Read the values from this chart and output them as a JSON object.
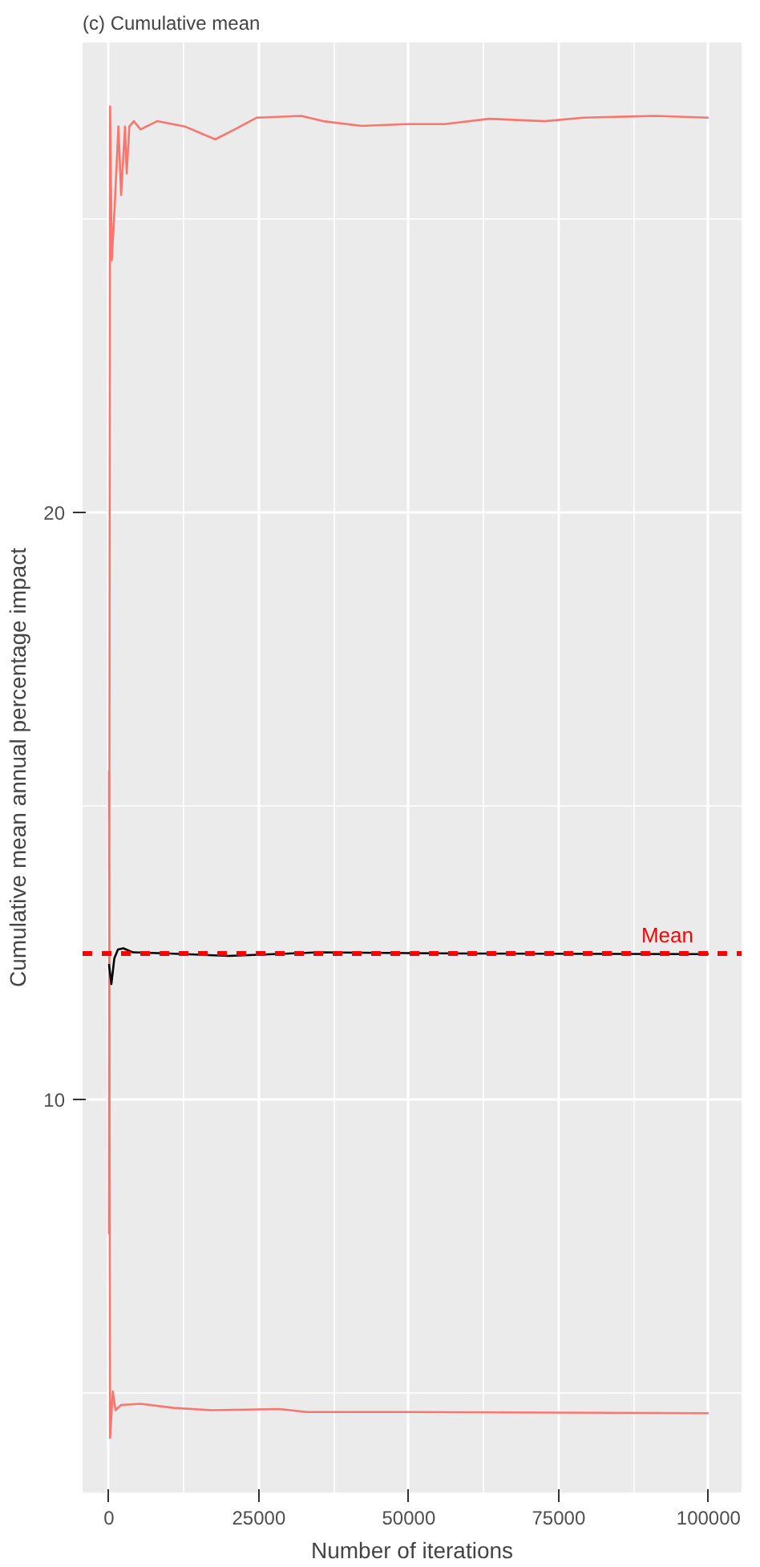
{
  "chart_data": {
    "type": "line",
    "title": "(c) Cumulative mean",
    "xlabel": "Number of iterations",
    "ylabel": "Cumulative mean annual percentage impact",
    "xlim": [
      -4400,
      105500
    ],
    "ylim": [
      3.3,
      28.0
    ],
    "xticks": [
      0,
      25000,
      50000,
      75000,
      100000
    ],
    "yticks": [
      10,
      20
    ],
    "grid": true,
    "series": [
      {
        "color": "#f8766d",
        "x": [
          0,
          190,
          470,
          920,
          1580,
          2030,
          2680,
          2960,
          3400,
          4150,
          5270,
          8030,
          12650,
          17730,
          20970,
          24650,
          32050,
          35700,
          42150,
          49600,
          56000,
          63400,
          72700,
          79100,
          91100,
          100000
        ],
        "values": [
          7.7,
          26.91,
          24.29,
          25.13,
          26.57,
          25.4,
          26.57,
          25.77,
          26.57,
          26.66,
          26.52,
          26.66,
          26.57,
          26.35,
          26.52,
          26.72,
          26.75,
          26.66,
          26.58,
          26.61,
          26.61,
          26.7,
          26.66,
          26.72,
          26.75,
          26.72
        ]
      },
      {
        "color": "#f8766d",
        "x": [
          0,
          190,
          640,
          1100,
          2030,
          5270,
          10800,
          17260,
          28350,
          33000,
          49600,
          100000
        ],
        "values": [
          15.6,
          4.23,
          5.02,
          4.7,
          4.79,
          4.81,
          4.74,
          4.7,
          4.72,
          4.67,
          4.67,
          4.65
        ]
      },
      {
        "color": "#000000",
        "x": [
          0,
          400,
          900,
          1500,
          2400,
          4000,
          10000,
          20000,
          35000,
          60000,
          100000
        ],
        "values": [
          12.3,
          11.96,
          12.4,
          12.55,
          12.57,
          12.5,
          12.48,
          12.44,
          12.5,
          12.48,
          12.47
        ]
      }
    ],
    "ref_lines": [
      {
        "axis": "y",
        "value": 12.48,
        "label": "Mean",
        "color": "#ff0000",
        "line_style": "dashed"
      }
    ]
  }
}
